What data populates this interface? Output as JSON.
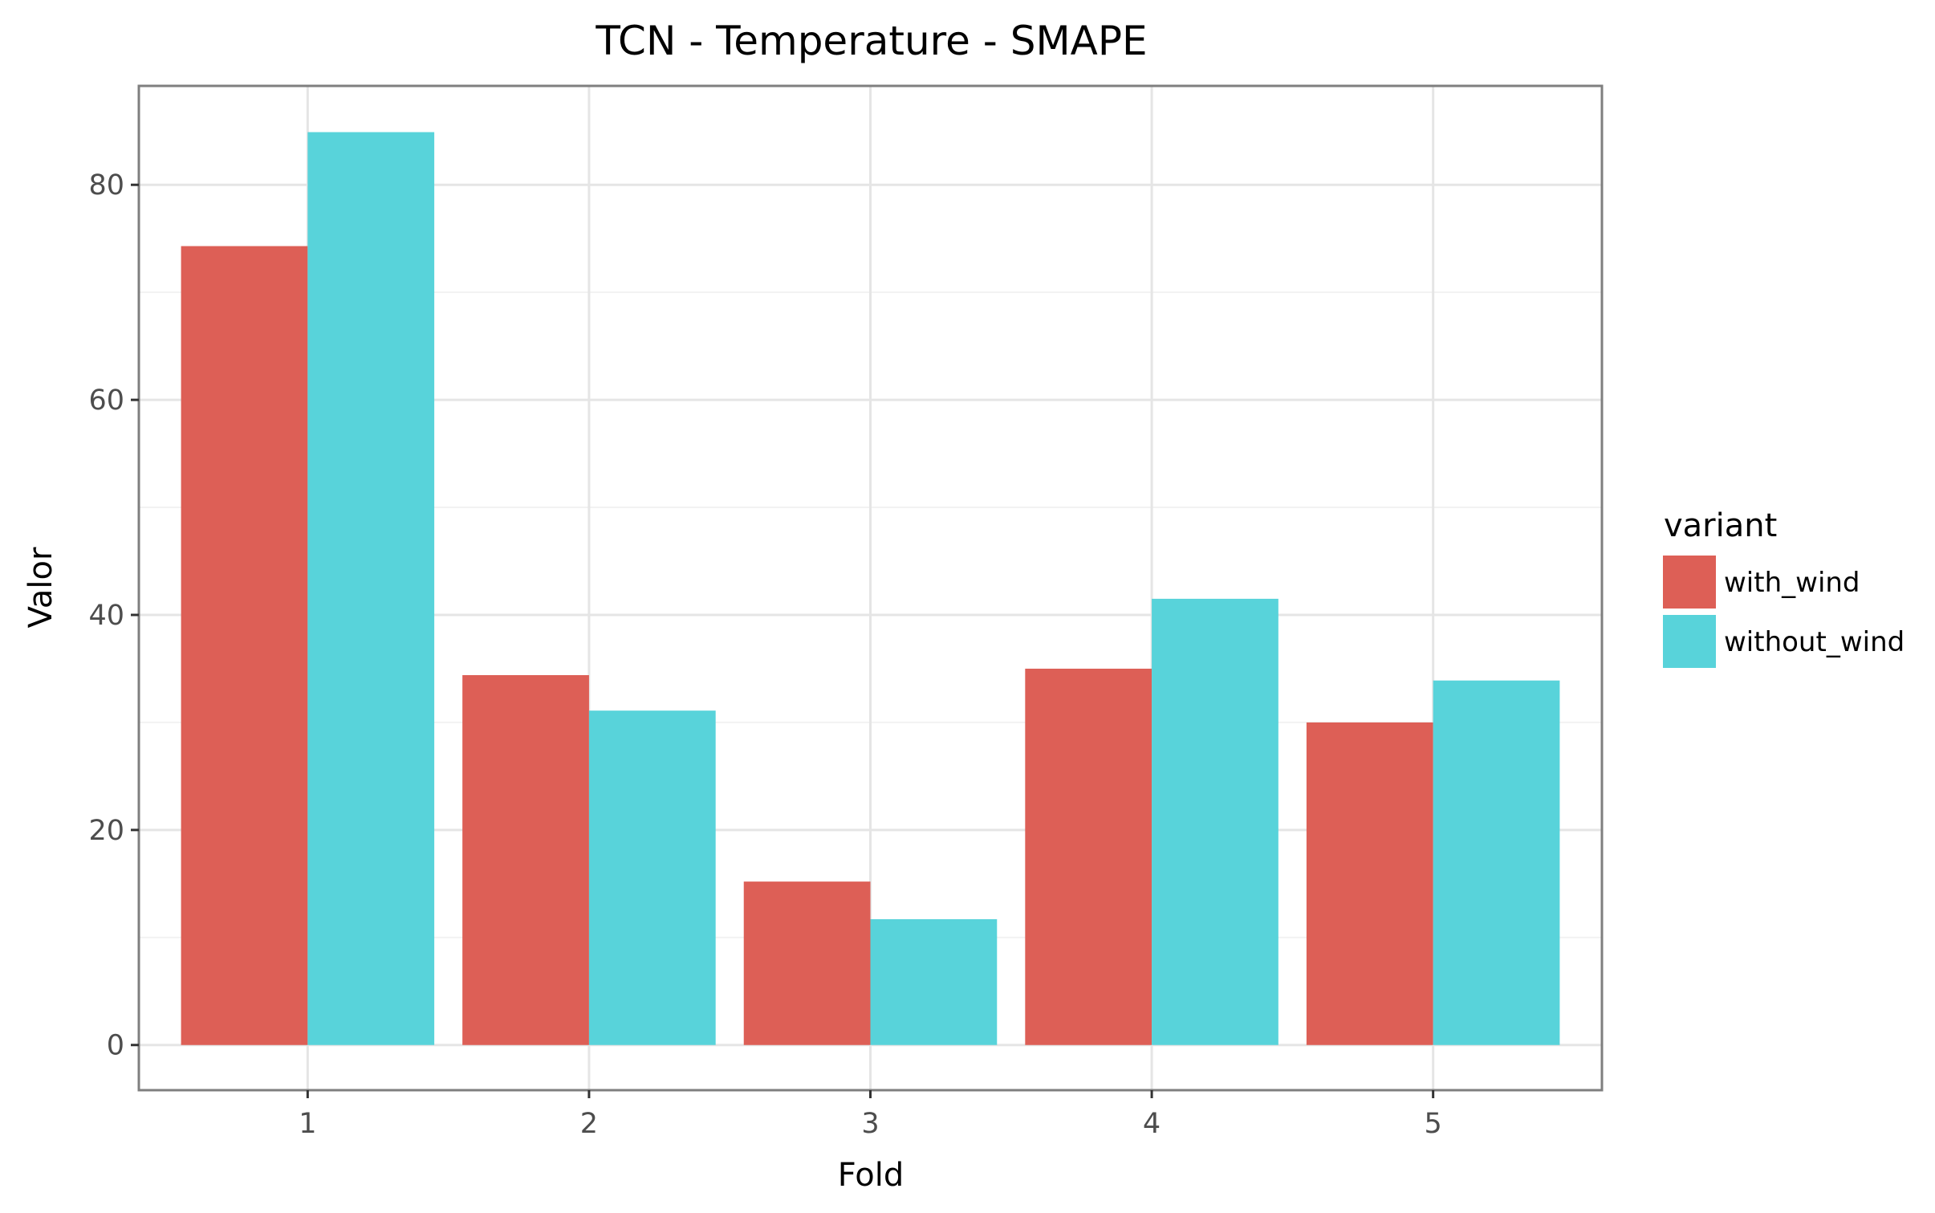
{
  "chart_data": {
    "type": "bar",
    "title": "TCN - Temperature - SMAPE",
    "xlabel": "Fold",
    "ylabel": "Valor",
    "categories": [
      "1",
      "2",
      "3",
      "4",
      "5"
    ],
    "series": [
      {
        "name": "with_wind",
        "color": "#dd5f56",
        "values": [
          74.3,
          34.4,
          15.2,
          35.0,
          30.0
        ]
      },
      {
        "name": "without_wind",
        "color": "#58d3da",
        "values": [
          84.9,
          31.1,
          11.7,
          41.5,
          33.9
        ]
      }
    ],
    "ylim": [
      -4.2,
      89.2
    ],
    "yticks": [
      0,
      20,
      40,
      60,
      80
    ],
    "grid": true,
    "legend": {
      "title": "variant",
      "placement": "right"
    }
  }
}
